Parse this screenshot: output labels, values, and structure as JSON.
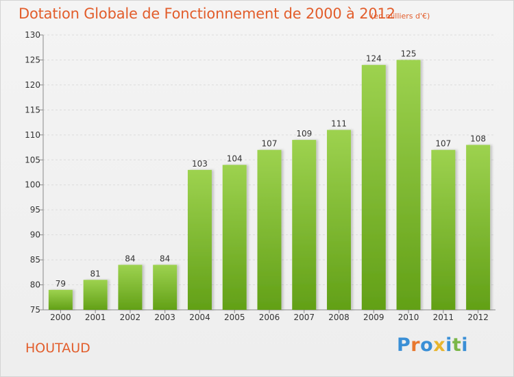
{
  "header": {
    "title": "Dotation Globale de Fonctionnement de 2000 à 2012",
    "subtitle": "(en milliers d'€)"
  },
  "footer": {
    "commune": "HOUTAUD",
    "logo_letters": [
      {
        "char": "P",
        "color": "#3a8fd6"
      },
      {
        "char": "r",
        "color": "#e8772e"
      },
      {
        "char": "o",
        "color": "#3a8fd6"
      },
      {
        "char": "x",
        "color": "#e8b52e"
      },
      {
        "char": "i",
        "color": "#3a8fd6"
      },
      {
        "char": "t",
        "color": "#7ab648"
      },
      {
        "char": "i",
        "color": "#3a8fd6"
      }
    ]
  },
  "chart_data": {
    "type": "bar",
    "categories": [
      "2000",
      "2001",
      "2002",
      "2003",
      "2004",
      "2005",
      "2006",
      "2007",
      "2008",
      "2009",
      "2010",
      "2011",
      "2012"
    ],
    "values": [
      79,
      81,
      84,
      84,
      103,
      104,
      107,
      109,
      111,
      124,
      125,
      107,
      108
    ],
    "data_labels": [
      "79",
      "81",
      "84",
      "84",
      "103",
      "104",
      "107",
      "109",
      "111",
      "124",
      "125",
      "107",
      "108"
    ],
    "title": "Dotation Globale de Fonctionnement de 2000 à 2012",
    "subtitle": "(en milliers d'€)",
    "xlabel": "",
    "ylabel": "",
    "ylim": [
      75,
      130
    ],
    "yticks": [
      75,
      80,
      85,
      90,
      95,
      100,
      105,
      110,
      115,
      120,
      125,
      130
    ],
    "ytick_labels": [
      "75",
      "80",
      "85",
      "90",
      "95",
      "100",
      "105",
      "110",
      "115",
      "120",
      "125",
      "130"
    ],
    "grid": true,
    "bar_color_top": "#9dd24f",
    "bar_color_bottom": "#62a017",
    "text_color": "#e25d2b"
  }
}
